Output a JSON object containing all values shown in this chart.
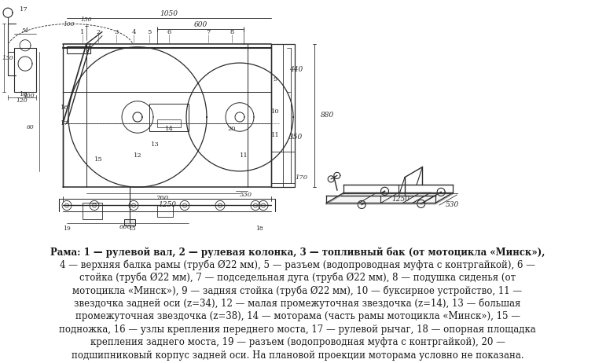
{
  "background_color": "#ffffff",
  "fig_width": 7.57,
  "fig_height": 4.62,
  "dpi": 100,
  "text_color": "#1a1a1a",
  "caption_lines": [
    {
      "bold": true,
      "text": "Рама: 1 — рулевой вал, 2 — рулевая колонка, 3 — топливный бак (от мотоцикла «Минск»),"
    },
    {
      "bold": false,
      "text": "4 — верхняя балка рамы (труба Ø22 мм), 5 — разъем (водопроводная муфта с контргайкой), 6 —"
    },
    {
      "bold": false,
      "text": "стойка (труба Ø22 мм), 7 — подседельная дуга (труба Ø22 мм), 8 — подушка сиденья (от"
    },
    {
      "bold": false,
      "text": "мотоцикла «Минск»), 9 — задняя стойка (труба Ø22 мм), 10 — буксирное устройство, 11 —"
    },
    {
      "bold": false,
      "text": "звездочка задней оси (z=34), 12 — малая промежуточная звездочка (z=14), 13 — большая"
    },
    {
      "bold": false,
      "text": "промежуточная звездочка (z=38), 14 — моторама (часть рамы мотоцикла «Минск»), 15 —"
    },
    {
      "bold": false,
      "text": "подножка, 16 — узлы крепления переднего моста, 17 — рулевой рычаг, 18 — опорная площадка"
    },
    {
      "bold": false,
      "text": "крепления заднего моста, 19 — разъем (водопроводная муфта с контргайкой), 20 —"
    },
    {
      "bold": false,
      "text": "подшипниковый корпус задней оси. На плановой проекции моторама условно не показана."
    }
  ],
  "font_size_caption": 8.5,
  "line_color": "#2a2a2a",
  "dim_color": "#333333"
}
